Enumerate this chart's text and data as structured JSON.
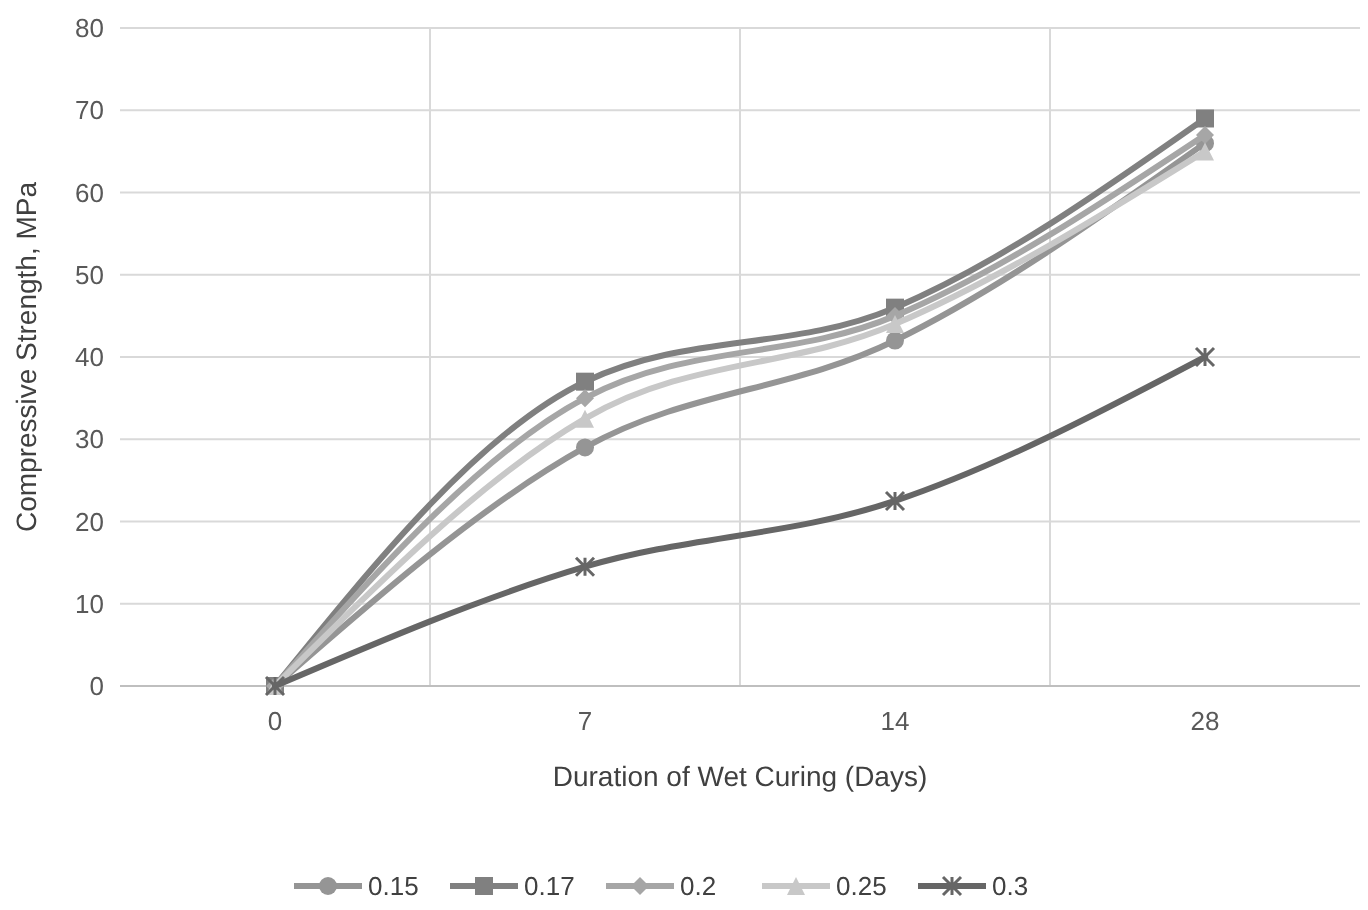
{
  "chart_data": {
    "type": "line",
    "xlabel": "Duration of Wet Curing (Days)",
    "ylabel": "Compressive Strength, MPa",
    "categories": [
      "0",
      "7",
      "14",
      "28"
    ],
    "ylim": [
      0,
      80
    ],
    "yticks": [
      0,
      10,
      20,
      30,
      40,
      50,
      60,
      70,
      80
    ],
    "grid": true,
    "legend": "bottom",
    "series": [
      {
        "name": "0.15",
        "color": "#959595",
        "marker": "circle",
        "values": [
          0,
          29,
          42,
          66
        ]
      },
      {
        "name": "0.17",
        "color": "#808080",
        "marker": "square",
        "values": [
          0,
          37,
          46,
          69
        ]
      },
      {
        "name": "0.2",
        "color": "#a6a6a6",
        "marker": "diamond",
        "values": [
          0,
          35,
          45,
          67
        ]
      },
      {
        "name": "0.25",
        "color": "#c8c8c8",
        "marker": "triangle",
        "values": [
          0,
          32.5,
          44,
          65
        ]
      },
      {
        "name": "0.3",
        "color": "#666666",
        "marker": "cross",
        "values": [
          0,
          14.5,
          22.5,
          40
        ]
      }
    ]
  }
}
